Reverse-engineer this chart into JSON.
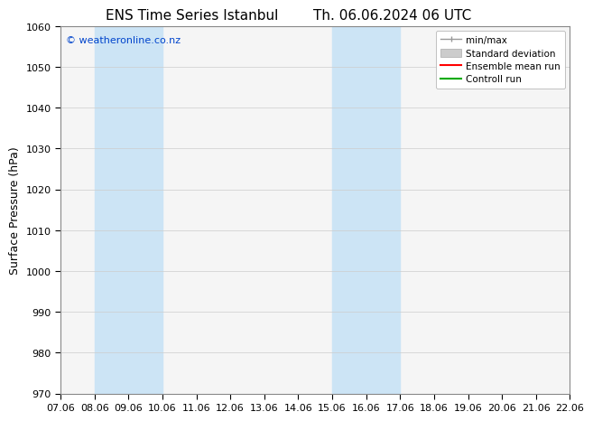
{
  "title_left": "ENS Time Series Istanbul",
  "title_right": "Th. 06.06.2024 06 UTC",
  "ylabel": "Surface Pressure (hPa)",
  "ylim": [
    970,
    1060
  ],
  "yticks": [
    970,
    980,
    990,
    1000,
    1010,
    1020,
    1030,
    1040,
    1050,
    1060
  ],
  "xlim_min": 0,
  "xlim_max": 15,
  "xtick_labels": [
    "07.06",
    "08.06",
    "09.06",
    "10.06",
    "11.06",
    "12.06",
    "13.06",
    "14.06",
    "15.06",
    "16.06",
    "17.06",
    "18.06",
    "19.06",
    "20.06",
    "21.06",
    "22.06"
  ],
  "xtick_positions": [
    0,
    1,
    2,
    3,
    4,
    5,
    6,
    7,
    8,
    9,
    10,
    11,
    12,
    13,
    14,
    15
  ],
  "shaded_bands": [
    {
      "x_start": 1,
      "x_end": 3,
      "color": "#cce4f5"
    },
    {
      "x_start": 8,
      "x_end": 10,
      "color": "#cce4f5"
    }
  ],
  "watermark": "© weatheronline.co.nz",
  "watermark_color": "#0044cc",
  "background_color": "#ffffff",
  "plot_bg_color": "#f5f5f5",
  "legend_labels": [
    "min/max",
    "Standard deviation",
    "Ensemble mean run",
    "Controll run"
  ],
  "legend_colors": [
    "#999999",
    "#cccccc",
    "#ff0000",
    "#00aa00"
  ],
  "title_fontsize": 11,
  "ylabel_fontsize": 9,
  "tick_fontsize": 8,
  "watermark_fontsize": 8,
  "legend_fontsize": 7.5
}
